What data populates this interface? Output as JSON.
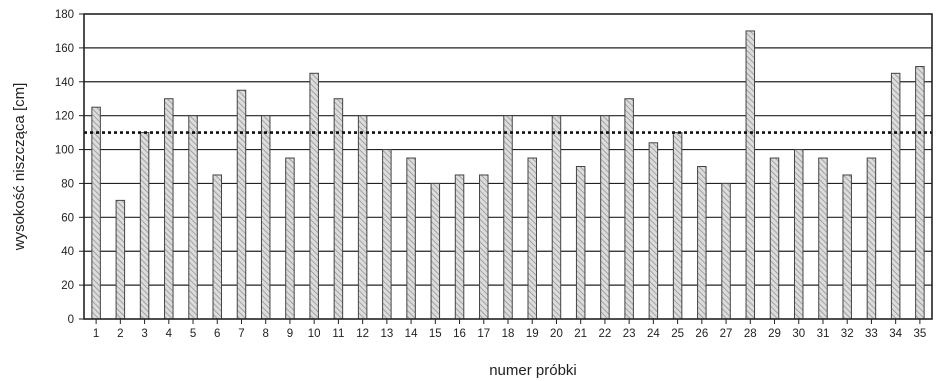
{
  "chart_data": {
    "type": "bar",
    "title": "",
    "xlabel": "numer próbki",
    "ylabel": "wysokość niszcząca [cm]",
    "ylim": [
      0,
      180
    ],
    "yticks": [
      "0",
      "20",
      "40",
      "60",
      "80",
      "100",
      "120",
      "140",
      "160",
      "180"
    ],
    "grid": true,
    "categories": [
      "1",
      "2",
      "3",
      "4",
      "5",
      "6",
      "7",
      "8",
      "9",
      "10",
      "11",
      "12",
      "13",
      "14",
      "15",
      "16",
      "17",
      "18",
      "19",
      "20",
      "21",
      "22",
      "23",
      "24",
      "25",
      "26",
      "27",
      "28",
      "29",
      "30",
      "31",
      "32",
      "33",
      "34",
      "35"
    ],
    "values": [
      125,
      70,
      110,
      130,
      120,
      85,
      135,
      120,
      95,
      145,
      130,
      120,
      100,
      95,
      80,
      85,
      85,
      120,
      95,
      120,
      90,
      120,
      130,
      104,
      110,
      90,
      80,
      170,
      95,
      100,
      95,
      85,
      95,
      145,
      149
    ],
    "reference_line": {
      "y": 110,
      "style": "dotted"
    },
    "colors": {
      "bar_fill": "#d9d9d9",
      "bar_hatch": "#8a8a8a",
      "bar_edge": "#444444",
      "grid": "#222222"
    }
  }
}
